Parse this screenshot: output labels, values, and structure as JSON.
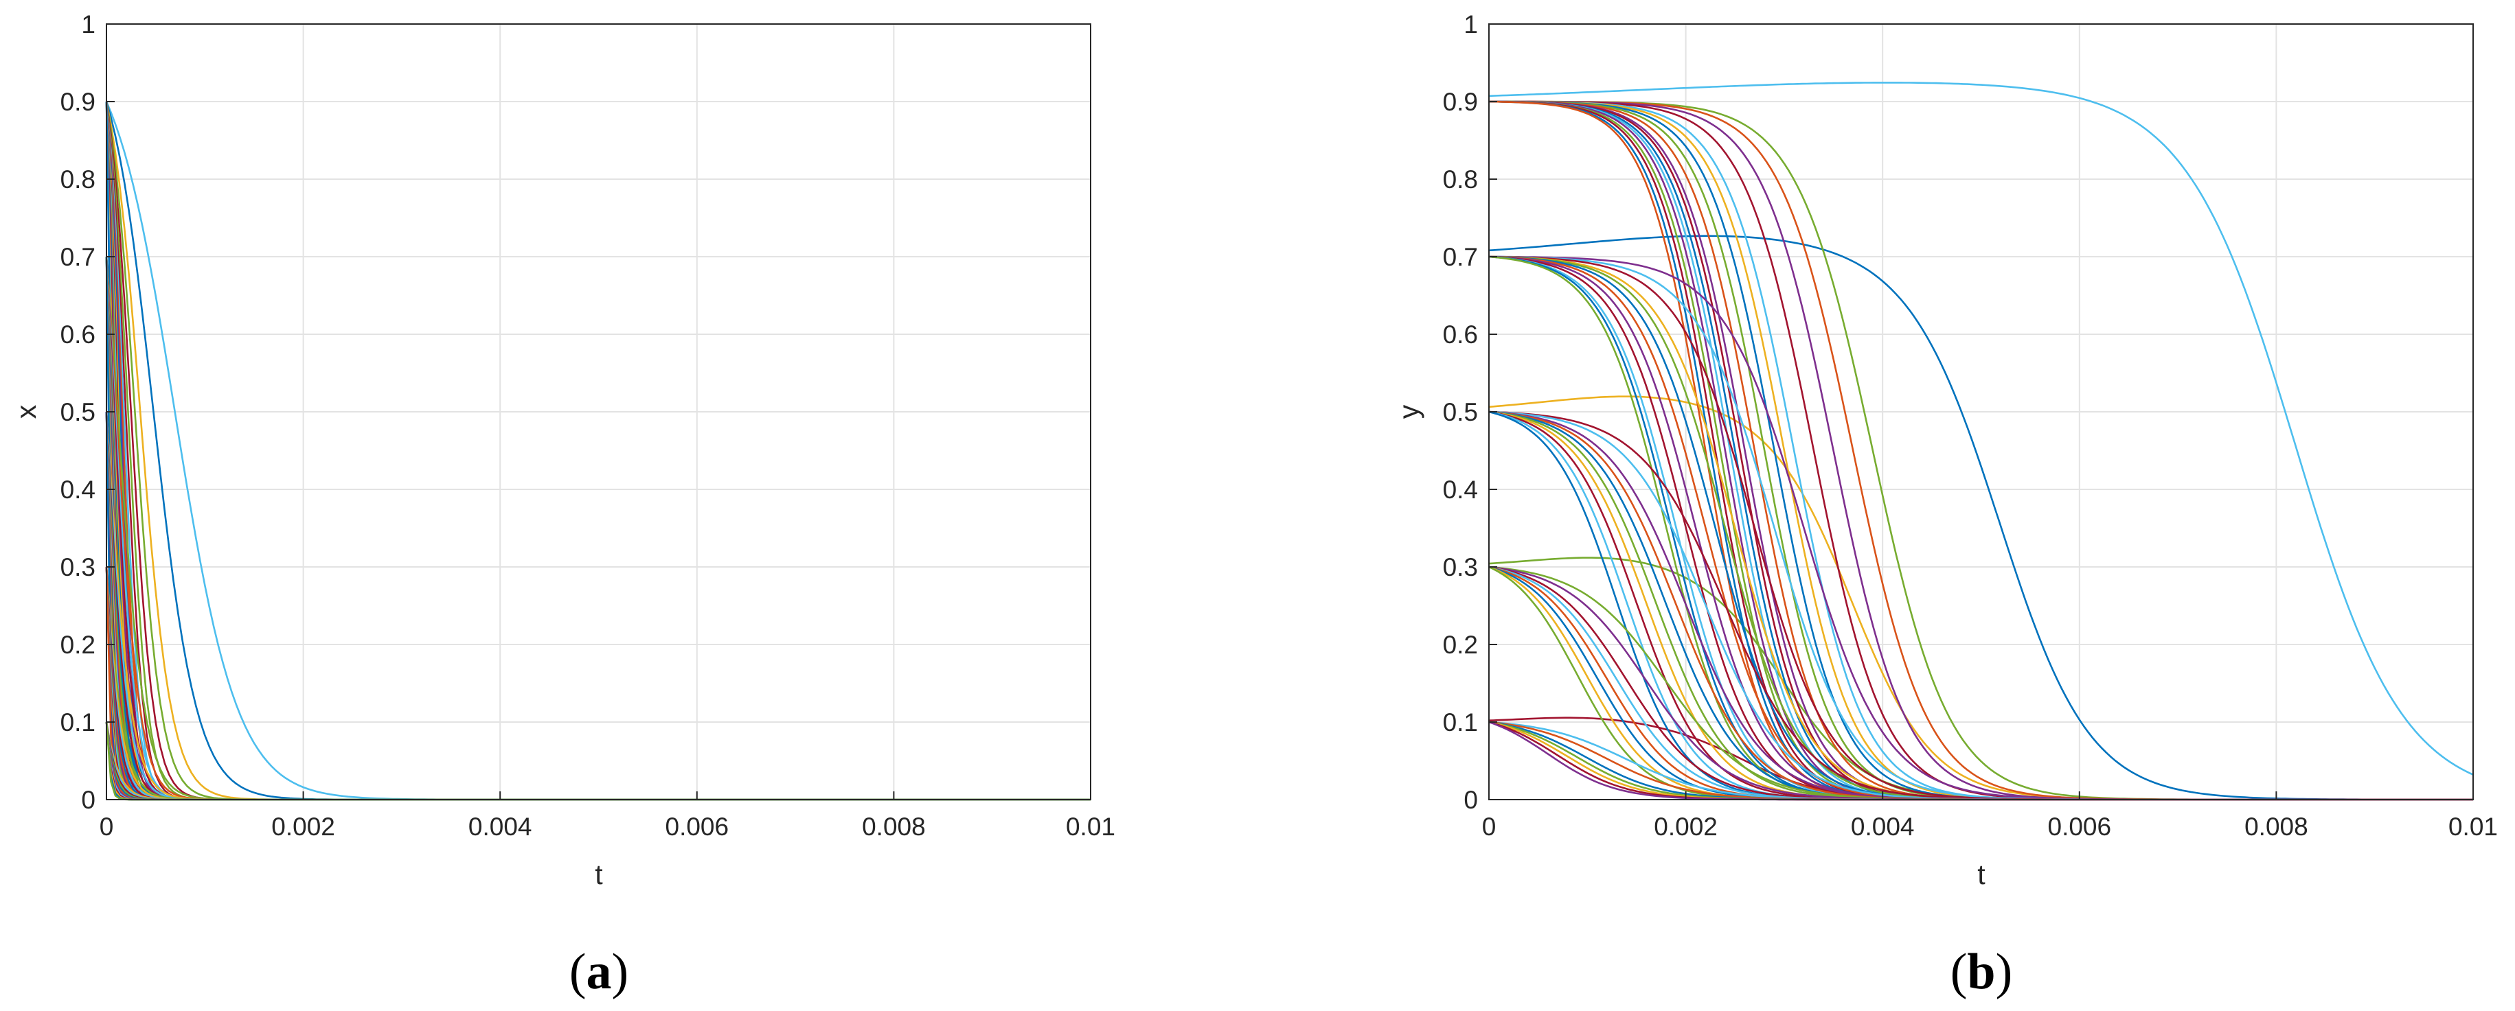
{
  "colors": [
    "#0072bd",
    "#d95319",
    "#edb120",
    "#7e2f8e",
    "#77ac30",
    "#4dbeee",
    "#a2142f"
  ],
  "chart_data": [
    {
      "type": "line",
      "panel": "a",
      "caption_open": "(",
      "caption_letter": "a",
      "caption_close": ")",
      "title": "",
      "xlabel": "t",
      "ylabel": "x",
      "xlim": [
        0,
        0.01
      ],
      "ylim": [
        0,
        1
      ],
      "xticks": [
        0,
        0.002,
        0.004,
        0.006,
        0.008,
        0.01
      ],
      "xtick_labels": [
        "0",
        "0.002",
        "0.004",
        "0.006",
        "0.008",
        "0.01"
      ],
      "yticks": [
        0,
        0.1,
        0.2,
        0.3,
        0.4,
        0.5,
        0.6,
        0.7,
        0.8,
        0.9,
        1
      ],
      "ytick_labels": [
        "0",
        "0.1",
        "0.2",
        "0.3",
        "0.4",
        "0.5",
        "0.6",
        "0.7",
        "0.8",
        "0.9",
        "1"
      ],
      "grid": true,
      "curve_model": "logistic decay x(t) = x0 / (x0 + (1 - x0) * exp(rate * t))",
      "initial_values": [
        0.9,
        0.7,
        0.5,
        0.3,
        0.1
      ],
      "series": [
        {
          "x0": 0.9,
          "rate": 3160,
          "color": "#4dbeee"
        },
        {
          "x0": 0.9,
          "rate": 4600,
          "color": "#0072bd"
        },
        {
          "x0": 0.9,
          "rate": 6400,
          "color": "#edb120"
        },
        {
          "x0": 0.9,
          "rate": 7600,
          "color": "#77ac30"
        },
        {
          "x0": 0.9,
          "rate": 8800,
          "color": "#a2142f"
        },
        {
          "x0": 0.9,
          "rate": 10000,
          "color": "#77ac30"
        },
        {
          "x0": 0.9,
          "rate": 11200,
          "color": "#a2142f"
        },
        {
          "x0": 0.9,
          "rate": 12400,
          "color": "#4dbeee"
        },
        {
          "x0": 0.9,
          "rate": 13600,
          "color": "#d95319"
        },
        {
          "x0": 0.9,
          "rate": 14800,
          "color": "#7e2f8e"
        },
        {
          "x0": 0.9,
          "rate": 16000,
          "color": "#0072bd"
        },
        {
          "x0": 0.9,
          "rate": 17500,
          "color": "#edb120"
        },
        {
          "x0": 0.9,
          "rate": 19000,
          "color": "#a2142f"
        },
        {
          "x0": 0.9,
          "rate": 21000,
          "color": "#4dbeee"
        },
        {
          "x0": 0.9,
          "rate": 23000,
          "color": "#77ac30"
        },
        {
          "x0": 0.9,
          "rate": 25000,
          "color": "#d95319"
        },
        {
          "x0": 0.9,
          "rate": 27500,
          "color": "#0072bd"
        },
        {
          "x0": 0.9,
          "rate": 30000,
          "color": "#7e2f8e"
        },
        {
          "x0": 0.9,
          "rate": 33000,
          "color": "#a2142f"
        },
        {
          "x0": 0.9,
          "rate": 36000,
          "color": "#edb120"
        },
        {
          "x0": 0.9,
          "rate": 40000,
          "color": "#4dbeee"
        },
        {
          "x0": 0.9,
          "rate": 45000,
          "color": "#0072bd"
        },
        {
          "x0": 0.7,
          "rate": 7400,
          "color": "#77ac30"
        },
        {
          "x0": 0.7,
          "rate": 8400,
          "color": "#d95319"
        },
        {
          "x0": 0.7,
          "rate": 9400,
          "color": "#4dbeee"
        },
        {
          "x0": 0.7,
          "rate": 10400,
          "color": "#a2142f"
        },
        {
          "x0": 0.7,
          "rate": 11400,
          "color": "#7e2f8e"
        },
        {
          "x0": 0.7,
          "rate": 12400,
          "color": "#edb120"
        },
        {
          "x0": 0.7,
          "rate": 13500,
          "color": "#0072bd"
        },
        {
          "x0": 0.7,
          "rate": 14600,
          "color": "#77ac30"
        },
        {
          "x0": 0.7,
          "rate": 15800,
          "color": "#a2142f"
        },
        {
          "x0": 0.7,
          "rate": 17000,
          "color": "#4dbeee"
        },
        {
          "x0": 0.7,
          "rate": 18500,
          "color": "#d95319"
        },
        {
          "x0": 0.7,
          "rate": 20000,
          "color": "#0072bd"
        },
        {
          "x0": 0.7,
          "rate": 22000,
          "color": "#7e2f8e"
        },
        {
          "x0": 0.7,
          "rate": 24000,
          "color": "#edb120"
        },
        {
          "x0": 0.7,
          "rate": 27000,
          "color": "#a2142f"
        },
        {
          "x0": 0.7,
          "rate": 30000,
          "color": "#4dbeee"
        },
        {
          "x0": 0.7,
          "rate": 34000,
          "color": "#77ac30"
        },
        {
          "x0": 0.7,
          "rate": 39000,
          "color": "#0072bd"
        },
        {
          "x0": 0.5,
          "rate": 8000,
          "color": "#edb120"
        },
        {
          "x0": 0.5,
          "rate": 9000,
          "color": "#4dbeee"
        },
        {
          "x0": 0.5,
          "rate": 10000,
          "color": "#a2142f"
        },
        {
          "x0": 0.5,
          "rate": 11000,
          "color": "#0072bd"
        },
        {
          "x0": 0.5,
          "rate": 12000,
          "color": "#77ac30"
        },
        {
          "x0": 0.5,
          "rate": 13200,
          "color": "#d95319"
        },
        {
          "x0": 0.5,
          "rate": 14400,
          "color": "#7e2f8e"
        },
        {
          "x0": 0.5,
          "rate": 15600,
          "color": "#4dbeee"
        },
        {
          "x0": 0.5,
          "rate": 17000,
          "color": "#edb120"
        },
        {
          "x0": 0.5,
          "rate": 18500,
          "color": "#a2142f"
        },
        {
          "x0": 0.5,
          "rate": 20000,
          "color": "#0072bd"
        },
        {
          "x0": 0.5,
          "rate": 22000,
          "color": "#77ac30"
        },
        {
          "x0": 0.5,
          "rate": 24000,
          "color": "#d95319"
        },
        {
          "x0": 0.5,
          "rate": 27000,
          "color": "#4dbeee"
        },
        {
          "x0": 0.5,
          "rate": 30000,
          "color": "#7e2f8e"
        },
        {
          "x0": 0.5,
          "rate": 34000,
          "color": "#a2142f"
        },
        {
          "x0": 0.5,
          "rate": 39000,
          "color": "#0072bd"
        },
        {
          "x0": 0.3,
          "rate": 8500,
          "color": "#77ac30"
        },
        {
          "x0": 0.3,
          "rate": 9500,
          "color": "#edb120"
        },
        {
          "x0": 0.3,
          "rate": 10500,
          "color": "#4dbeee"
        },
        {
          "x0": 0.3,
          "rate": 11600,
          "color": "#a2142f"
        },
        {
          "x0": 0.3,
          "rate": 12800,
          "color": "#0072bd"
        },
        {
          "x0": 0.3,
          "rate": 14000,
          "color": "#d95319"
        },
        {
          "x0": 0.3,
          "rate": 15400,
          "color": "#7e2f8e"
        },
        {
          "x0": 0.3,
          "rate": 17000,
          "color": "#77ac30"
        },
        {
          "x0": 0.3,
          "rate": 18800,
          "color": "#4dbeee"
        },
        {
          "x0": 0.3,
          "rate": 21000,
          "color": "#a2142f"
        },
        {
          "x0": 0.3,
          "rate": 23500,
          "color": "#edb120"
        },
        {
          "x0": 0.3,
          "rate": 26500,
          "color": "#0072bd"
        },
        {
          "x0": 0.3,
          "rate": 30000,
          "color": "#7e2f8e"
        },
        {
          "x0": 0.3,
          "rate": 35000,
          "color": "#d95319"
        },
        {
          "x0": 0.1,
          "rate": 9000,
          "color": "#edb120"
        },
        {
          "x0": 0.1,
          "rate": 10000,
          "color": "#4dbeee"
        },
        {
          "x0": 0.1,
          "rate": 11200,
          "color": "#a2142f"
        },
        {
          "x0": 0.1,
          "rate": 12500,
          "color": "#77ac30"
        },
        {
          "x0": 0.1,
          "rate": 14000,
          "color": "#0072bd"
        },
        {
          "x0": 0.1,
          "rate": 15600,
          "color": "#d95319"
        },
        {
          "x0": 0.1,
          "rate": 17500,
          "color": "#7e2f8e"
        },
        {
          "x0": 0.1,
          "rate": 19500,
          "color": "#4dbeee"
        },
        {
          "x0": 0.1,
          "rate": 22000,
          "color": "#a2142f"
        },
        {
          "x0": 0.1,
          "rate": 25000,
          "color": "#edb120"
        },
        {
          "x0": 0.1,
          "rate": 29000,
          "color": "#0072bd"
        },
        {
          "x0": 0.1,
          "rate": 34000,
          "color": "#77ac30"
        }
      ]
    },
    {
      "type": "line",
      "panel": "b",
      "caption_open": "(",
      "caption_letter": "b",
      "caption_close": ")",
      "title": "",
      "xlabel": "t",
      "ylabel": "y",
      "xlim": [
        0,
        0.01
      ],
      "ylim": [
        0,
        1
      ],
      "xticks": [
        0,
        0.002,
        0.004,
        0.006,
        0.008,
        0.01
      ],
      "xtick_labels": [
        "0",
        "0.002",
        "0.004",
        "0.006",
        "0.008",
        "0.01"
      ],
      "yticks": [
        0,
        0.1,
        0.2,
        0.3,
        0.4,
        0.5,
        0.6,
        0.7,
        0.8,
        0.9,
        1
      ],
      "ytick_labels": [
        "0",
        "0.1",
        "0.2",
        "0.3",
        "0.4",
        "0.5",
        "0.6",
        "0.7",
        "0.8",
        "0.9",
        "1"
      ],
      "grid": true,
      "curve_model": "y(t) = y0 * exp(growth * t) / (1 + (exp(k * t) - 1) * fade)",
      "initial_values": [
        0.9,
        0.7,
        0.5,
        0.3,
        0.1
      ],
      "series": [
        {
          "y0": 0.9,
          "peak": 0.925,
          "peak_t": 0.0043,
          "half_t": 0.0082,
          "width": 0.0012,
          "color": "#4dbeee"
        },
        {
          "y0": 0.7,
          "peak": 0.728,
          "peak_t": 0.0024,
          "half_t": 0.0052,
          "width": 0.001,
          "color": "#0072bd"
        },
        {
          "y0": 0.5,
          "peak": 0.522,
          "peak_t": 0.0016,
          "half_t": 0.0037,
          "width": 0.0009,
          "color": "#edb120"
        },
        {
          "y0": 0.3,
          "peak": 0.315,
          "peak_t": 0.0013,
          "half_t": 0.003,
          "width": 0.0009,
          "color": "#77ac30"
        },
        {
          "y0": 0.1,
          "peak": 0.107,
          "peak_t": 0.001,
          "half_t": 0.0026,
          "width": 0.0009,
          "color": "#a2142f"
        },
        {
          "y0": 0.9,
          "half_t": 0.0039,
          "width": 0.00085,
          "color": "#77ac30"
        },
        {
          "y0": 0.9,
          "half_t": 0.0037,
          "width": 0.00082,
          "color": "#d95319"
        },
        {
          "y0": 0.9,
          "half_t": 0.0035,
          "width": 0.0008,
          "color": "#7e2f8e"
        },
        {
          "y0": 0.9,
          "half_t": 0.0033,
          "width": 0.00078,
          "color": "#a2142f"
        },
        {
          "y0": 0.9,
          "half_t": 0.0031,
          "width": 0.00076,
          "color": "#4dbeee"
        },
        {
          "y0": 0.9,
          "half_t": 0.003,
          "width": 0.00075,
          "color": "#edb120"
        },
        {
          "y0": 0.9,
          "half_t": 0.0029,
          "width": 0.00074,
          "color": "#0072bd"
        },
        {
          "y0": 0.9,
          "half_t": 0.0028,
          "width": 0.00073,
          "color": "#77ac30"
        },
        {
          "y0": 0.9,
          "half_t": 0.0027,
          "width": 0.00072,
          "color": "#d95319"
        },
        {
          "y0": 0.9,
          "half_t": 0.0026,
          "width": 0.00071,
          "color": "#7e2f8e"
        },
        {
          "y0": 0.9,
          "half_t": 0.00255,
          "width": 0.0007,
          "color": "#a2142f"
        },
        {
          "y0": 0.9,
          "half_t": 0.0025,
          "width": 0.0007,
          "color": "#0072bd"
        },
        {
          "y0": 0.9,
          "half_t": 0.00245,
          "width": 0.00069,
          "color": "#4dbeee"
        },
        {
          "y0": 0.9,
          "half_t": 0.0024,
          "width": 0.00068,
          "color": "#7e2f8e"
        },
        {
          "y0": 0.9,
          "half_t": 0.00235,
          "width": 0.00068,
          "color": "#77ac30"
        },
        {
          "y0": 0.9,
          "half_t": 0.0023,
          "width": 0.00067,
          "color": "#a2142f"
        },
        {
          "y0": 0.9,
          "half_t": 0.00225,
          "width": 0.00067,
          "color": "#0072bd"
        },
        {
          "y0": 0.9,
          "half_t": 0.0022,
          "width": 0.00066,
          "color": "#d95319"
        },
        {
          "y0": 0.7,
          "half_t": 0.0032,
          "width": 0.0009,
          "color": "#7e2f8e"
        },
        {
          "y0": 0.7,
          "half_t": 0.0029,
          "width": 0.00088,
          "color": "#4dbeee"
        },
        {
          "y0": 0.7,
          "half_t": 0.0027,
          "width": 0.00085,
          "color": "#a2142f"
        },
        {
          "y0": 0.7,
          "half_t": 0.0025,
          "width": 0.00083,
          "color": "#edb120"
        },
        {
          "y0": 0.7,
          "half_t": 0.0024,
          "width": 0.00081,
          "color": "#77ac30"
        },
        {
          "y0": 0.7,
          "half_t": 0.0023,
          "width": 0.0008,
          "color": "#0072bd"
        },
        {
          "y0": 0.7,
          "half_t": 0.0022,
          "width": 0.00079,
          "color": "#d95319"
        },
        {
          "y0": 0.7,
          "half_t": 0.0021,
          "width": 0.00078,
          "color": "#7e2f8e"
        },
        {
          "y0": 0.7,
          "half_t": 0.002,
          "width": 0.00077,
          "color": "#a2142f"
        },
        {
          "y0": 0.7,
          "half_t": 0.0019,
          "width": 0.00076,
          "color": "#4dbeee"
        },
        {
          "y0": 0.7,
          "half_t": 0.00185,
          "width": 0.00075,
          "color": "#0072bd"
        },
        {
          "y0": 0.7,
          "half_t": 0.0018,
          "width": 0.00075,
          "color": "#77ac30"
        },
        {
          "y0": 0.5,
          "half_t": 0.0024,
          "width": 0.00095,
          "color": "#a2142f"
        },
        {
          "y0": 0.5,
          "half_t": 0.0022,
          "width": 0.0009,
          "color": "#4dbeee"
        },
        {
          "y0": 0.5,
          "half_t": 0.002,
          "width": 0.00088,
          "color": "#7e2f8e"
        },
        {
          "y0": 0.5,
          "half_t": 0.0019,
          "width": 0.00086,
          "color": "#d95319"
        },
        {
          "y0": 0.5,
          "half_t": 0.0018,
          "width": 0.00084,
          "color": "#0072bd"
        },
        {
          "y0": 0.5,
          "half_t": 0.0017,
          "width": 0.00082,
          "color": "#77ac30"
        },
        {
          "y0": 0.5,
          "half_t": 0.0016,
          "width": 0.0008,
          "color": "#edb120"
        },
        {
          "y0": 0.5,
          "half_t": 0.0015,
          "width": 0.00078,
          "color": "#a2142f"
        },
        {
          "y0": 0.5,
          "half_t": 0.0014,
          "width": 0.00076,
          "color": "#4dbeee"
        },
        {
          "y0": 0.5,
          "half_t": 0.0013,
          "width": 0.00074,
          "color": "#0072bd"
        },
        {
          "y0": 0.3,
          "half_t": 0.0018,
          "width": 0.00095,
          "color": "#77ac30"
        },
        {
          "y0": 0.3,
          "half_t": 0.0016,
          "width": 0.0009,
          "color": "#7e2f8e"
        },
        {
          "y0": 0.3,
          "half_t": 0.0014,
          "width": 0.00085,
          "color": "#a2142f"
        },
        {
          "y0": 0.3,
          "half_t": 0.0013,
          "width": 0.00082,
          "color": "#4dbeee"
        },
        {
          "y0": 0.3,
          "half_t": 0.0012,
          "width": 0.0008,
          "color": "#d95319"
        },
        {
          "y0": 0.3,
          "half_t": 0.0011,
          "width": 0.00078,
          "color": "#0072bd"
        },
        {
          "y0": 0.3,
          "half_t": 0.001,
          "width": 0.00076,
          "color": "#edb120"
        },
        {
          "y0": 0.3,
          "half_t": 0.0009,
          "width": 0.00074,
          "color": "#77ac30"
        },
        {
          "y0": 0.1,
          "half_t": 0.0014,
          "width": 0.00095,
          "color": "#4dbeee"
        },
        {
          "y0": 0.1,
          "half_t": 0.0012,
          "width": 0.0009,
          "color": "#d95319"
        },
        {
          "y0": 0.1,
          "half_t": 0.001,
          "width": 0.00085,
          "color": "#0072bd"
        },
        {
          "y0": 0.1,
          "half_t": 0.0009,
          "width": 0.00082,
          "color": "#77ac30"
        },
        {
          "y0": 0.1,
          "half_t": 0.0008,
          "width": 0.0008,
          "color": "#edb120"
        },
        {
          "y0": 0.1,
          "half_t": 0.0007,
          "width": 0.00078,
          "color": "#a2142f"
        },
        {
          "y0": 0.1,
          "half_t": 0.0006,
          "width": 0.00076,
          "color": "#7e2f8e"
        }
      ]
    }
  ]
}
